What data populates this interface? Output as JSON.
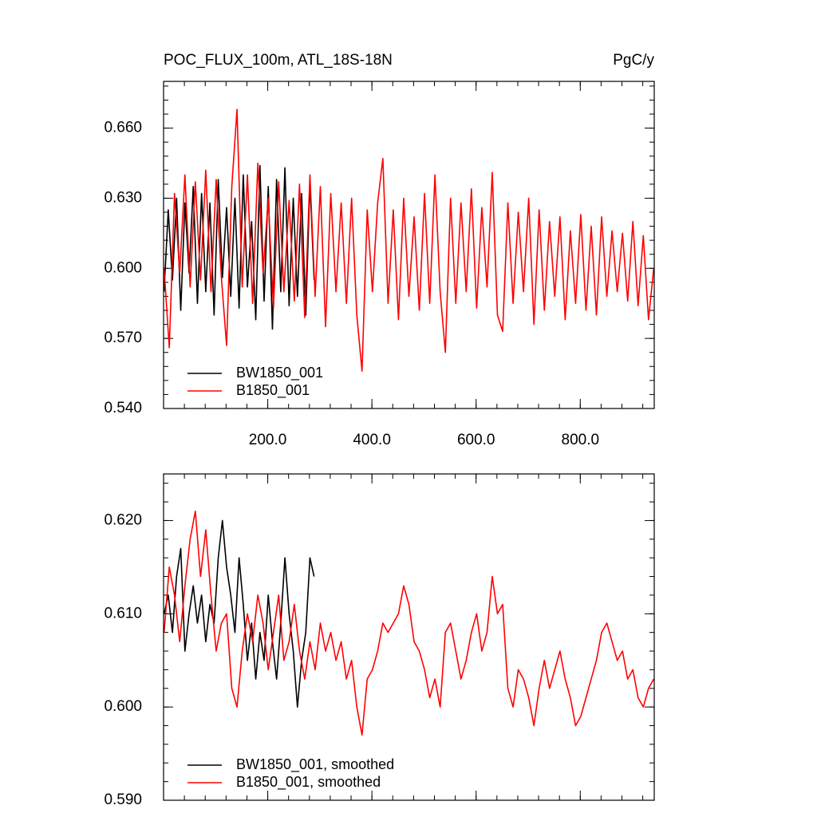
{
  "chart_data": [
    {
      "type": "line",
      "title": "POC_FLUX_100m, ATL_18S-18N",
      "unit": "PgC/y",
      "xlim": [
        0,
        942
      ],
      "ylim": [
        0.54,
        0.68
      ],
      "xticks": [
        {
          "value": 200,
          "label": "200.0"
        },
        {
          "value": 400,
          "label": "400.0"
        },
        {
          "value": 600,
          "label": "600.0"
        },
        {
          "value": 800,
          "label": "800.0"
        }
      ],
      "yticks": [
        {
          "value": 0.54,
          "label": "0.540"
        },
        {
          "value": 0.57,
          "label": "0.570"
        },
        {
          "value": 0.6,
          "label": "0.600"
        },
        {
          "value": 0.63,
          "label": "0.630"
        },
        {
          "value": 0.66,
          "label": "0.660"
        }
      ],
      "series": [
        {
          "name": "BW1850_001",
          "color": "#000000",
          "x": [
            1,
            9,
            17,
            25,
            33,
            41,
            49,
            57,
            65,
            73,
            81,
            89,
            97,
            105,
            113,
            121,
            129,
            137,
            145,
            153,
            161,
            169,
            177,
            185,
            193,
            201,
            209,
            217,
            225,
            233,
            241,
            249,
            257,
            265,
            273,
            281,
            289
          ],
          "values": [
            0.59,
            0.625,
            0.595,
            0.63,
            0.582,
            0.628,
            0.598,
            0.635,
            0.585,
            0.632,
            0.59,
            0.628,
            0.58,
            0.638,
            0.596,
            0.626,
            0.588,
            0.63,
            0.583,
            0.64,
            0.592,
            0.62,
            0.578,
            0.644,
            0.586,
            0.635,
            0.574,
            0.638,
            0.59,
            0.643,
            0.584,
            0.63,
            0.588,
            0.632,
            0.58,
            0.637,
            0.595
          ]
        },
        {
          "name": "B1850_001",
          "color": "#ff0000",
          "x": [
            1,
            11,
            21,
            31,
            41,
            51,
            61,
            71,
            81,
            91,
            101,
            111,
            121,
            131,
            141,
            151,
            161,
            171,
            181,
            191,
            201,
            211,
            221,
            231,
            241,
            251,
            261,
            271,
            281,
            291,
            301,
            311,
            321,
            331,
            341,
            351,
            361,
            371,
            381,
            391,
            401,
            411,
            421,
            431,
            441,
            451,
            461,
            471,
            481,
            491,
            501,
            511,
            521,
            531,
            541,
            551,
            561,
            571,
            581,
            591,
            601,
            611,
            621,
            631,
            641,
            651,
            661,
            671,
            681,
            691,
            701,
            711,
            721,
            731,
            741,
            751,
            761,
            771,
            781,
            791,
            801,
            811,
            821,
            831,
            841,
            851,
            861,
            871,
            881,
            891,
            901,
            911,
            921,
            931,
            941
          ],
          "values": [
            0.6,
            0.566,
            0.632,
            0.598,
            0.64,
            0.592,
            0.637,
            0.595,
            0.642,
            0.59,
            0.638,
            0.596,
            0.567,
            0.635,
            0.668,
            0.592,
            0.64,
            0.585,
            0.645,
            0.598,
            0.63,
            0.583,
            0.637,
            0.59,
            0.629,
            0.586,
            0.636,
            0.579,
            0.64,
            0.588,
            0.635,
            0.575,
            0.632,
            0.59,
            0.628,
            0.585,
            0.63,
            0.58,
            0.556,
            0.625,
            0.59,
            0.628,
            0.647,
            0.585,
            0.625,
            0.578,
            0.63,
            0.588,
            0.622,
            0.582,
            0.632,
            0.585,
            0.64,
            0.59,
            0.564,
            0.63,
            0.585,
            0.628,
            0.59,
            0.634,
            0.583,
            0.626,
            0.592,
            0.641,
            0.58,
            0.573,
            0.628,
            0.585,
            0.624,
            0.59,
            0.63,
            0.576,
            0.625,
            0.582,
            0.62,
            0.588,
            0.622,
            0.578,
            0.616,
            0.585,
            0.623,
            0.582,
            0.618,
            0.58,
            0.622,
            0.588,
            0.616,
            0.59,
            0.615,
            0.586,
            0.62,
            0.584,
            0.614,
            0.578,
            0.6
          ]
        }
      ]
    },
    {
      "type": "line",
      "xlim": [
        0,
        942
      ],
      "ylim": [
        0.59,
        0.625
      ],
      "xticks": [
        200,
        400,
        600,
        800
      ],
      "yticks": [
        {
          "value": 0.59,
          "label": "0.590"
        },
        {
          "value": 0.6,
          "label": "0.600"
        },
        {
          "value": 0.61,
          "label": "0.610"
        },
        {
          "value": 0.62,
          "label": "0.620"
        }
      ],
      "series": [
        {
          "name": "BW1850_001, smoothed",
          "color": "#000000",
          "x": [
            1,
            9,
            17,
            25,
            33,
            41,
            49,
            57,
            65,
            73,
            81,
            89,
            97,
            105,
            113,
            121,
            129,
            137,
            145,
            153,
            161,
            169,
            177,
            185,
            193,
            201,
            209,
            217,
            225,
            233,
            241,
            249,
            257,
            265,
            273,
            281,
            289
          ],
          "values": [
            0.61,
            0.612,
            0.608,
            0.614,
            0.617,
            0.606,
            0.61,
            0.613,
            0.609,
            0.612,
            0.607,
            0.611,
            0.609,
            0.616,
            0.62,
            0.615,
            0.612,
            0.608,
            0.616,
            0.611,
            0.605,
            0.609,
            0.603,
            0.608,
            0.605,
            0.612,
            0.607,
            0.603,
            0.609,
            0.616,
            0.61,
            0.606,
            0.6,
            0.605,
            0.608,
            0.616,
            0.614
          ]
        },
        {
          "name": "B1850_001, smoothed",
          "color": "#ff0000",
          "x": [
            1,
            11,
            21,
            31,
            41,
            51,
            61,
            71,
            81,
            91,
            101,
            111,
            121,
            131,
            141,
            151,
            161,
            171,
            181,
            191,
            201,
            211,
            221,
            231,
            241,
            251,
            261,
            271,
            281,
            291,
            301,
            311,
            321,
            331,
            341,
            351,
            361,
            371,
            381,
            391,
            401,
            411,
            421,
            431,
            441,
            451,
            461,
            471,
            481,
            491,
            501,
            511,
            521,
            531,
            541,
            551,
            561,
            571,
            581,
            591,
            601,
            611,
            621,
            631,
            641,
            651,
            661,
            671,
            681,
            691,
            701,
            711,
            721,
            731,
            741,
            751,
            761,
            771,
            781,
            791,
            801,
            811,
            821,
            831,
            841,
            851,
            861,
            871,
            881,
            891,
            901,
            911,
            921,
            931,
            941
          ],
          "values": [
            0.608,
            0.615,
            0.612,
            0.607,
            0.613,
            0.618,
            0.621,
            0.614,
            0.619,
            0.612,
            0.606,
            0.609,
            0.61,
            0.602,
            0.6,
            0.606,
            0.61,
            0.607,
            0.612,
            0.609,
            0.604,
            0.608,
            0.612,
            0.605,
            0.607,
            0.611,
            0.606,
            0.603,
            0.607,
            0.604,
            0.609,
            0.606,
            0.608,
            0.605,
            0.607,
            0.603,
            0.605,
            0.6,
            0.597,
            0.603,
            0.604,
            0.606,
            0.609,
            0.608,
            0.609,
            0.61,
            0.613,
            0.611,
            0.607,
            0.606,
            0.604,
            0.601,
            0.603,
            0.6,
            0.608,
            0.609,
            0.606,
            0.603,
            0.605,
            0.608,
            0.61,
            0.606,
            0.608,
            0.614,
            0.61,
            0.611,
            0.602,
            0.6,
            0.604,
            0.603,
            0.601,
            0.598,
            0.602,
            0.605,
            0.602,
            0.604,
            0.606,
            0.603,
            0.601,
            0.598,
            0.599,
            0.601,
            0.603,
            0.605,
            0.608,
            0.609,
            0.607,
            0.605,
            0.606,
            0.603,
            0.604,
            0.601,
            0.6,
            0.602,
            0.603
          ]
        }
      ]
    }
  ]
}
